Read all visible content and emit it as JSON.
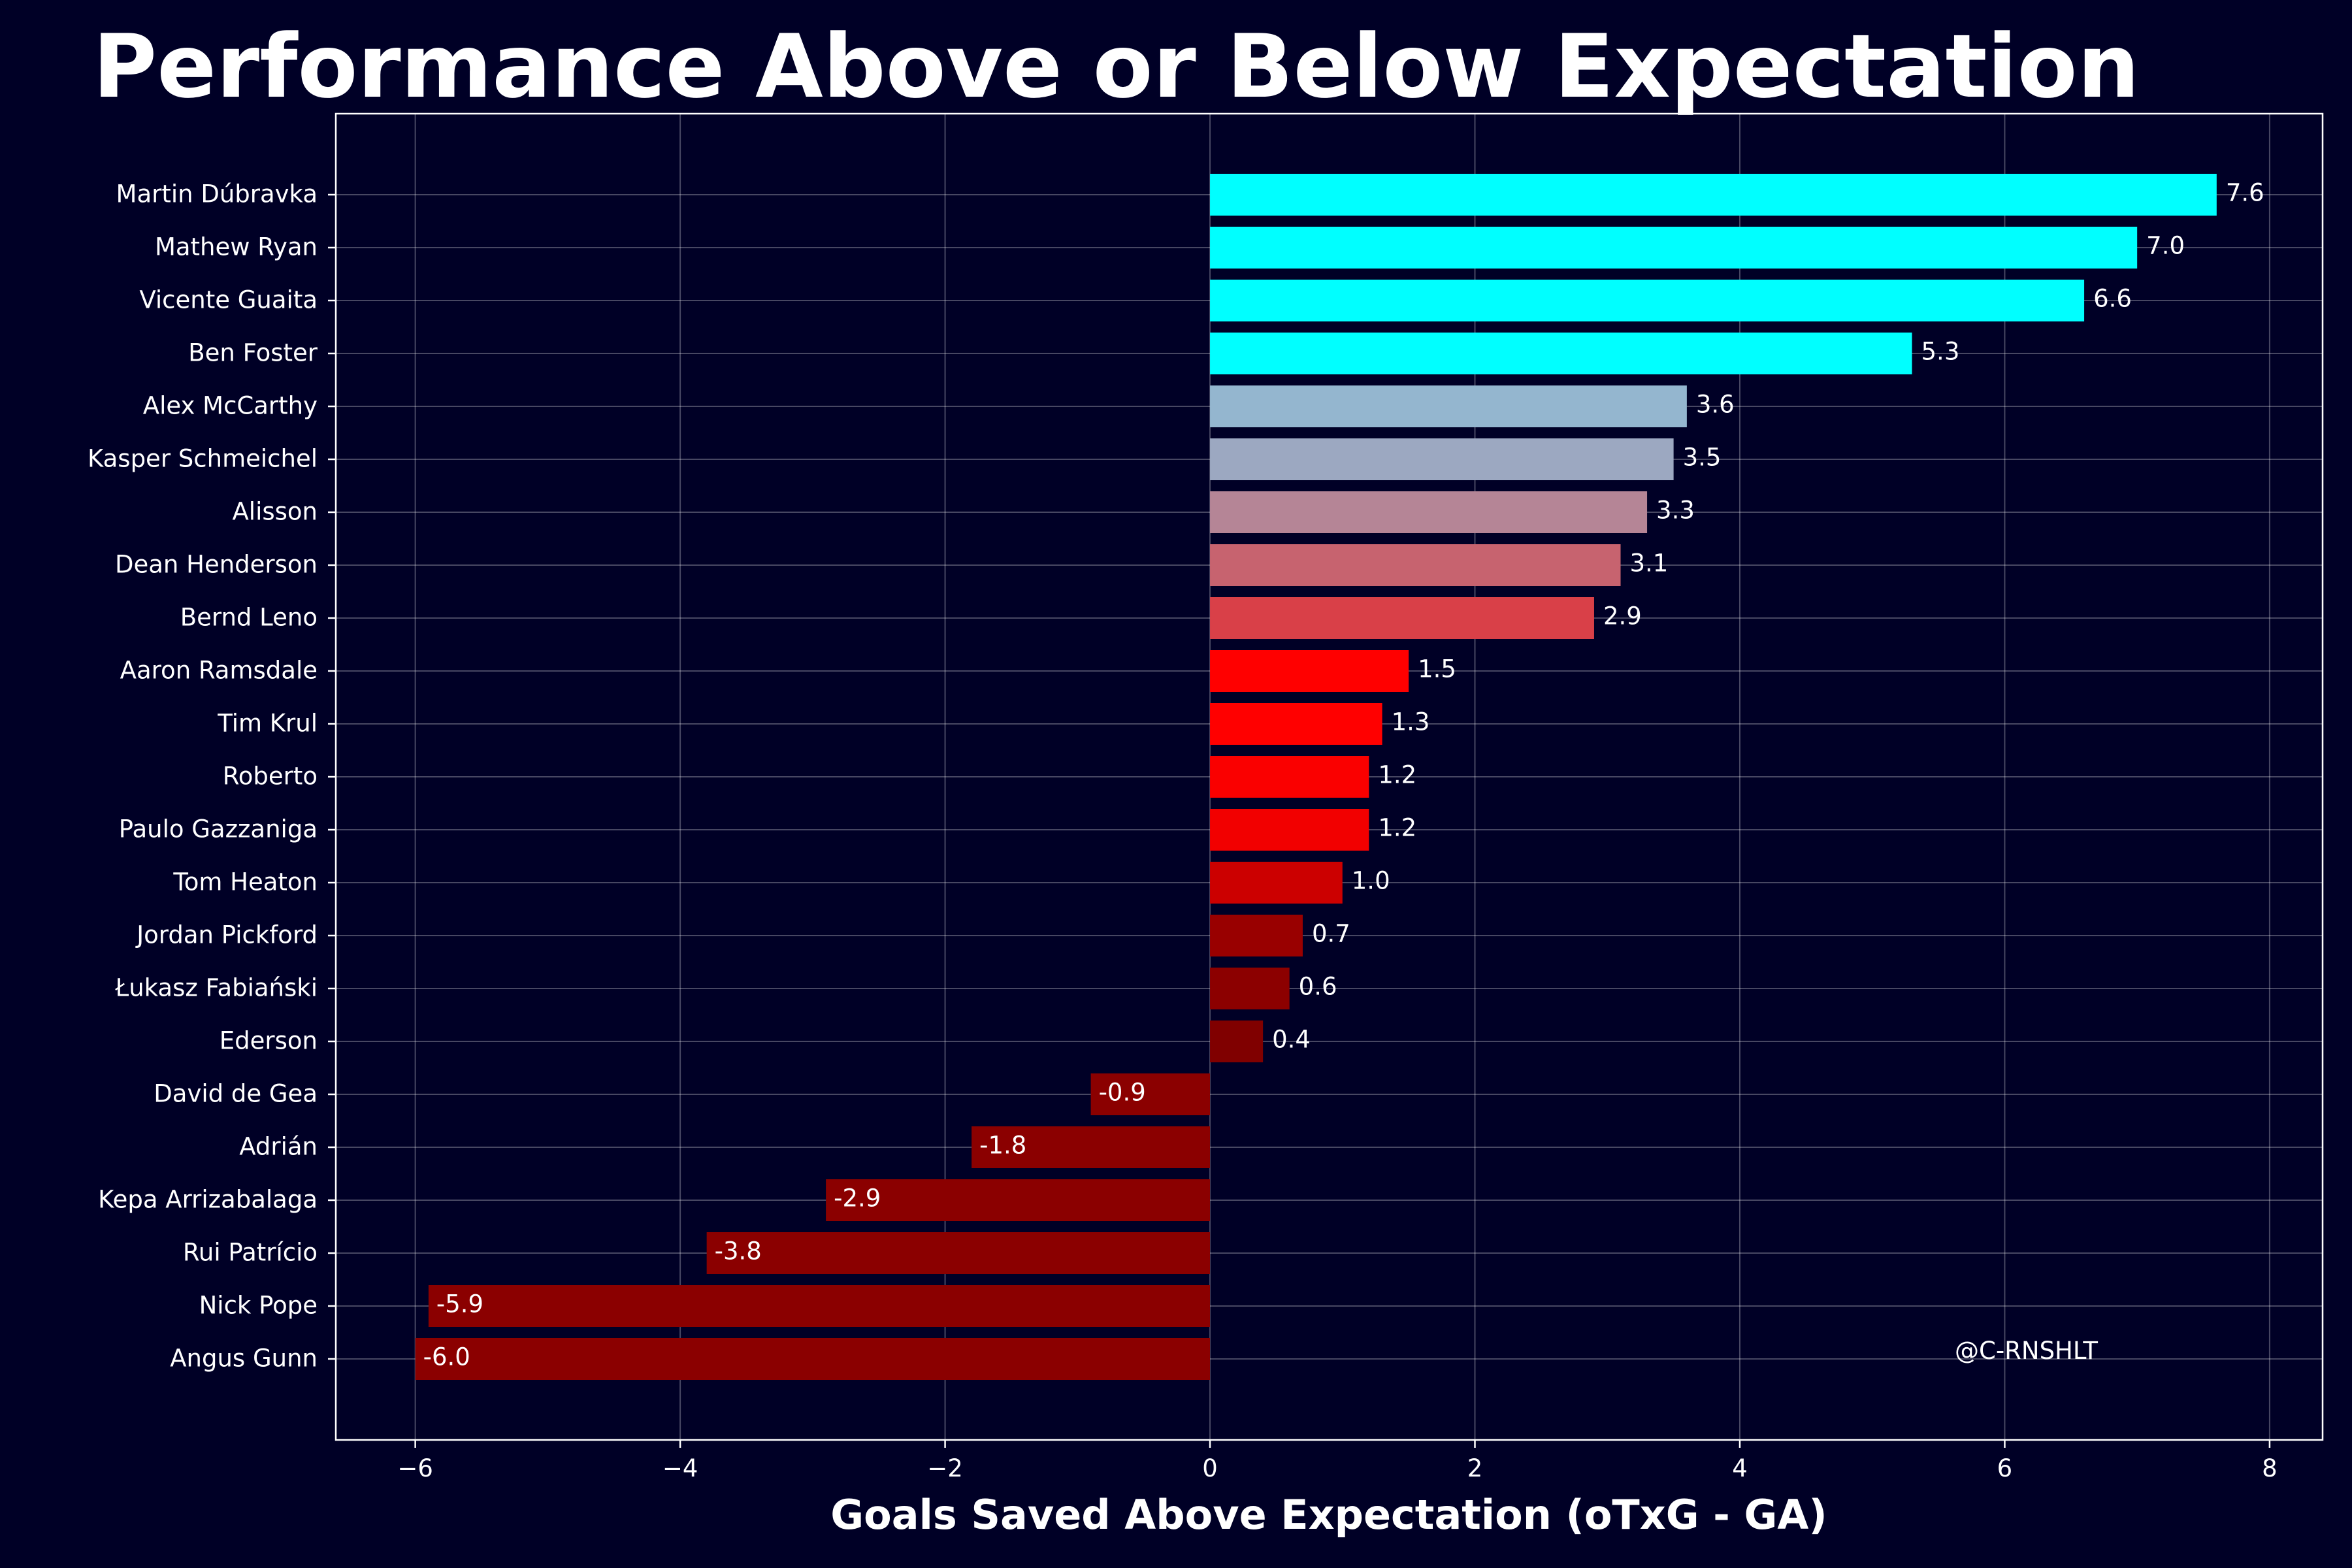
{
  "chart_data": {
    "type": "bar",
    "orientation": "horizontal",
    "title": "Performance Above or Below Expectation",
    "xlabel": "Goals Saved Above Expectation (oTxG - GA)",
    "ylabel": "",
    "xlim": [
      -6.6,
      8.4
    ],
    "xticks": [
      -6,
      -4,
      -2,
      0,
      2,
      4,
      6,
      8
    ],
    "xtick_labels": [
      "−6",
      "−4",
      "−2",
      "0",
      "2",
      "4",
      "6",
      "8"
    ],
    "grid": true,
    "watermark": "@C-RNSHLT",
    "categories": [
      "Martin Dúbravka",
      "Mathew Ryan",
      "Vicente Guaita",
      "Ben Foster",
      "Alex McCarthy",
      "Kasper Schmeichel",
      "Alisson",
      "Dean Henderson",
      "Bernd Leno",
      "Aaron Ramsdale",
      "Tim Krul",
      "Roberto",
      "Paulo Gazzaniga",
      "Tom Heaton",
      "Jordan Pickford",
      "Łukasz Fabiański",
      "Ederson",
      "David de Gea",
      "Adrián",
      "Kepa Arrizabalaga",
      "Rui Patrício",
      "Nick Pope",
      "Angus Gunn"
    ],
    "values": [
      7.6,
      7.0,
      6.6,
      5.3,
      3.6,
      3.5,
      3.3,
      3.1,
      2.9,
      1.5,
      1.3,
      1.2,
      1.2,
      1.0,
      0.7,
      0.6,
      0.4,
      -0.9,
      -1.8,
      -2.9,
      -3.8,
      -5.9,
      -6.0
    ],
    "value_labels": [
      "7.6",
      "7.0",
      "6.6",
      "5.3",
      "3.6",
      "3.5",
      "3.3",
      "3.1",
      "2.9",
      "1.5",
      "1.3",
      "1.2",
      "1.2",
      "1.0",
      "0.7",
      "0.6",
      "0.4",
      "-0.9",
      "-1.8",
      "-2.9",
      "-3.8",
      "-5.9",
      "-6.0"
    ],
    "colors": [
      "#00ffff",
      "#00ffff",
      "#00ffff",
      "#00ffff",
      "#94b6cf",
      "#9ca8c1",
      "#b58596",
      "#c7636f",
      "#d94048",
      "#ff0000",
      "#ff0000",
      "#fa0000",
      "#f20000",
      "#cc0000",
      "#990000",
      "#8c0000",
      "#800000",
      "#8b0000",
      "#8b0000",
      "#8b0000",
      "#8b0000",
      "#8b0000",
      "#8b0000"
    ],
    "colors_meta": {
      "background": "#000026",
      "text": "#ffffff"
    }
  }
}
